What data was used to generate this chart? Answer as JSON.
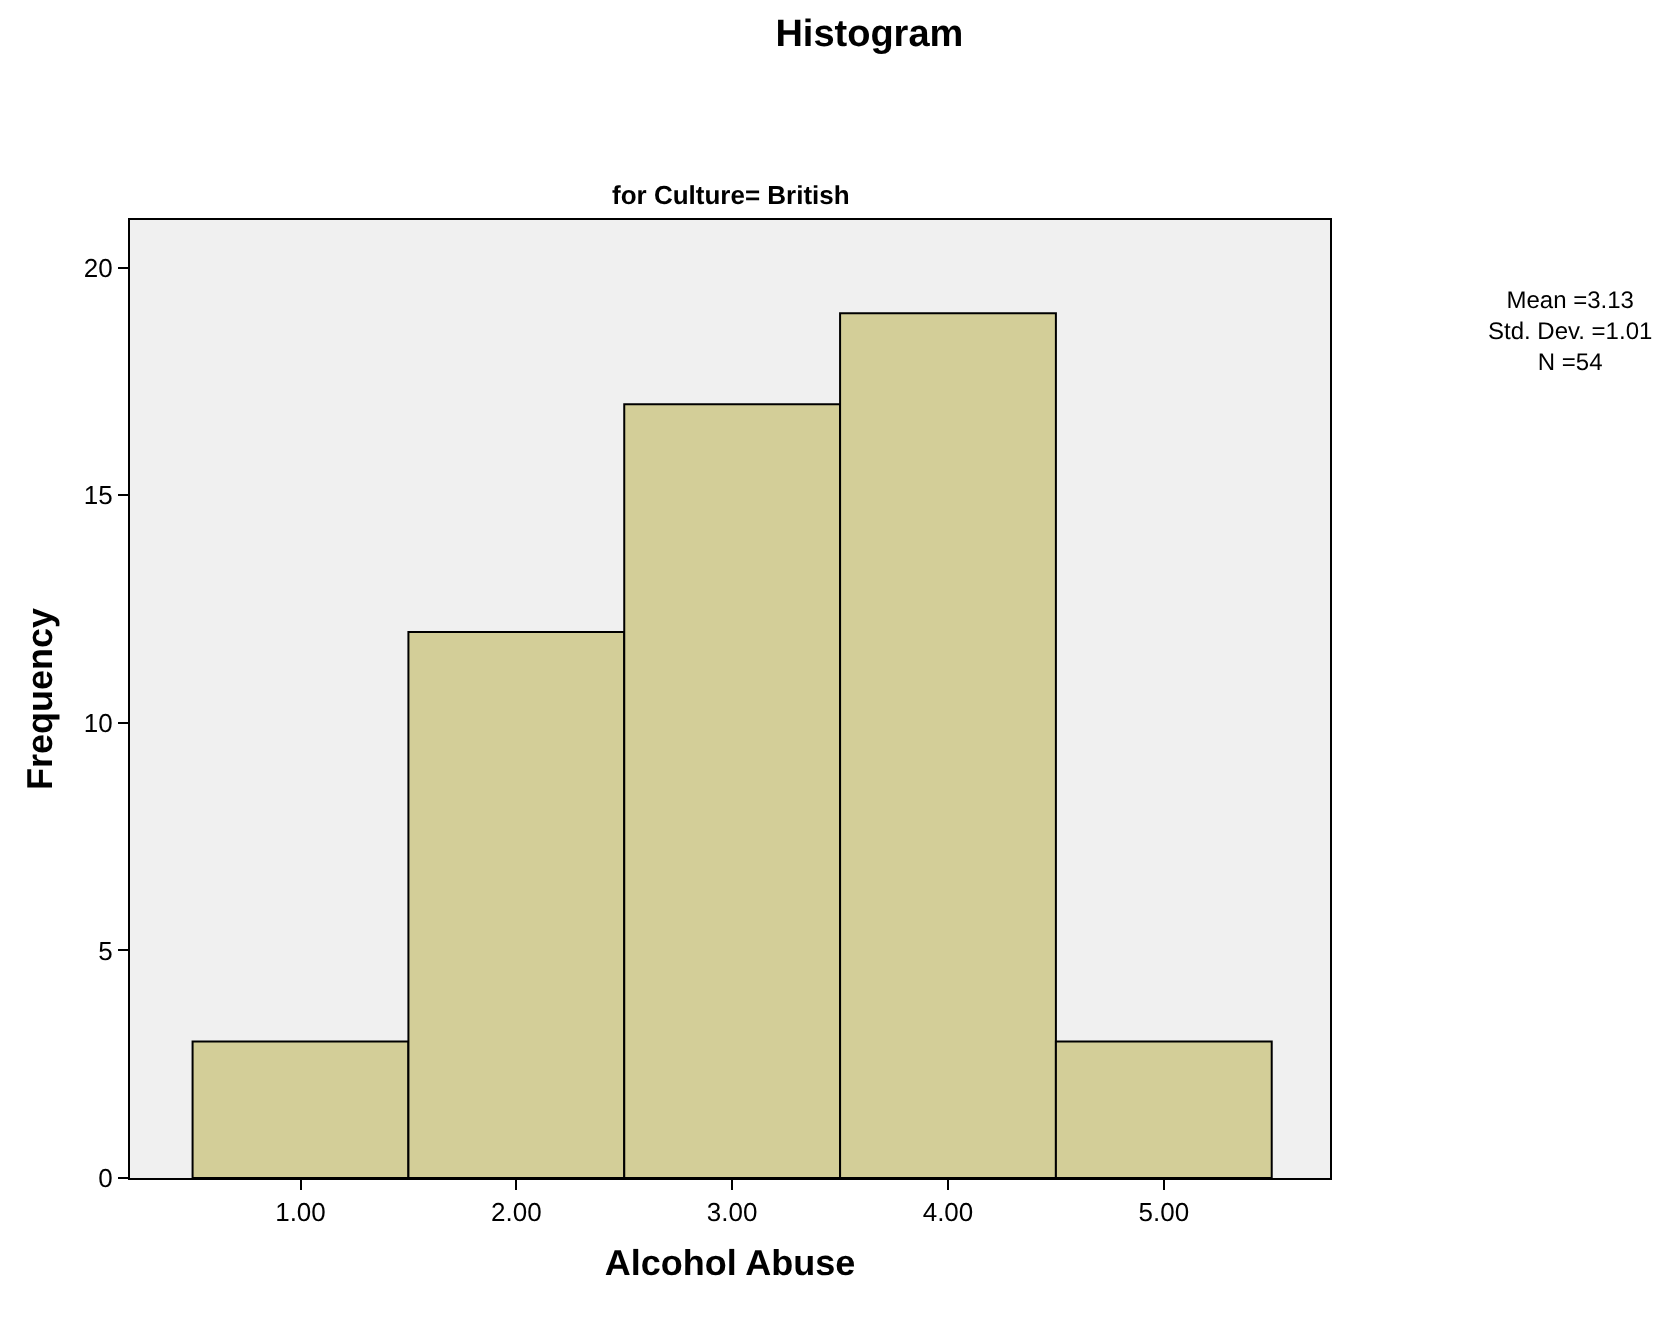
{
  "chart_data": {
    "type": "histogram",
    "title": "Histogram",
    "subtitle": "for Culture= British",
    "xlabel": "Alcohol Abuse",
    "ylabel": "Frequency",
    "bins": [
      0.5,
      1.5,
      2.5,
      3.5,
      4.5,
      5.5
    ],
    "values": [
      3,
      12,
      17,
      19,
      3
    ],
    "color": "#d3ce98",
    "xlim": [
      0.21,
      5.77
    ],
    "xticks": [
      {
        "value": 1,
        "label": "1.00"
      },
      {
        "value": 2,
        "label": "2.00"
      },
      {
        "value": 3,
        "label": "3.00"
      },
      {
        "value": 4,
        "label": "4.00"
      },
      {
        "value": 5,
        "label": "5.00"
      }
    ],
    "ylim": [
      0,
      21.05
    ],
    "yticks": [
      0,
      5,
      10,
      15,
      20
    ],
    "grid": false,
    "legend": false,
    "annotations": [
      "Mean =3.13",
      "Std. Dev. =1.01",
      "N =54"
    ]
  }
}
